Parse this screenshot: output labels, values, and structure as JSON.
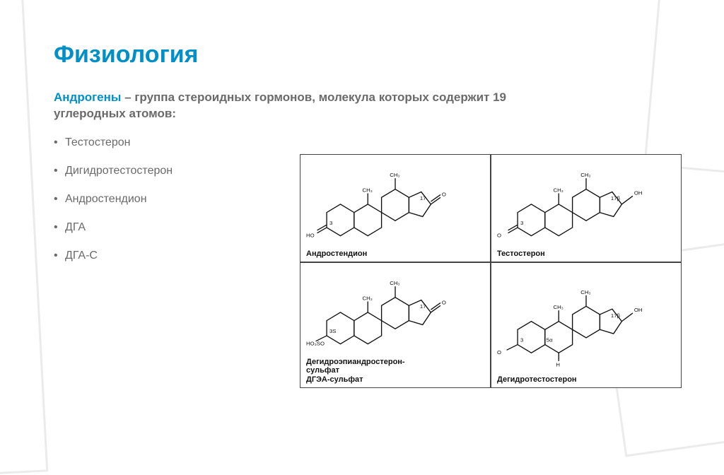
{
  "colors": {
    "title": "#0090c8",
    "def_term": "#0090c8",
    "def_text": "#6a6a6a",
    "bullet_text": "#6a6a6a",
    "cell_border": "#444444",
    "bg": "#ffffff"
  },
  "title": "Физиология",
  "definition": {
    "term": "Андрогены",
    "rest": " – группа стероидных гормонов, молекула которых содержит 19 углеродных атомов:"
  },
  "bullets": [
    "Тестостерон",
    "Дигидротестостерон",
    "Андростендион",
    "ДГА",
    "ДГА-С"
  ],
  "structures": [
    {
      "label": "Андростендион",
      "left_sub": "HO",
      "right_sub": "O",
      "c17_oh": false,
      "c3_double": true,
      "atom3": "3",
      "atom17": "17"
    },
    {
      "label": "Тестостерон",
      "left_sub": "O",
      "right_sub": "OH",
      "c17_oh": true,
      "c3_double": true,
      "atom3": "3",
      "atom17": "17β"
    },
    {
      "label": "Дегидроэпиандростерон-\nсульфат\nДГЭА-сульфат",
      "left_sub": "HO₃SO",
      "right_sub": "O",
      "c17_oh": false,
      "c3_double": false,
      "atom3": "3S",
      "atom17": "17"
    },
    {
      "label": "Дегидротестостерон",
      "left_sub": "O",
      "right_sub": "OH",
      "c17_oh": true,
      "c3_double": false,
      "atom3": "3",
      "atom17": "17β",
      "extra_h": true
    }
  ]
}
